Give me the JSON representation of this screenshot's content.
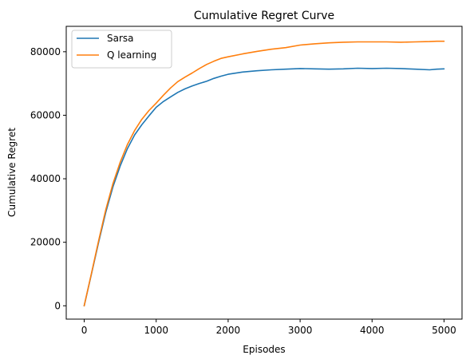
{
  "chart_data": {
    "type": "line",
    "title": "Cumulative Regret Curve",
    "xlabel": "Episodes",
    "ylabel": "Cumulative Regret",
    "xlim": [
      -250,
      5250
    ],
    "ylim": [
      -4200,
      88000
    ],
    "xticks": [
      0,
      1000,
      2000,
      3000,
      4000,
      5000
    ],
    "xtick_labels": [
      "0",
      "1000",
      "2000",
      "3000",
      "4000",
      "5000"
    ],
    "yticks": [
      0,
      20000,
      40000,
      60000,
      80000
    ],
    "ytick_labels": [
      "0",
      "20000",
      "40000",
      "60000",
      "80000"
    ],
    "grid": false,
    "legend_position": "top-left",
    "series": [
      {
        "name": "Sarsa",
        "color": "#1f77b4",
        "x": [
          0,
          100,
          200,
          300,
          400,
          500,
          600,
          700,
          800,
          900,
          1000,
          1100,
          1200,
          1300,
          1400,
          1500,
          1600,
          1700,
          1800,
          1900,
          2000,
          2200,
          2400,
          2600,
          2800,
          3000,
          3200,
          3400,
          3600,
          3800,
          4000,
          4200,
          4400,
          4600,
          4800,
          4900,
          5000
        ],
        "values": [
          0,
          10000,
          20000,
          29500,
          37500,
          44000,
          49500,
          53800,
          57000,
          59800,
          62500,
          64300,
          65800,
          67200,
          68300,
          69200,
          70000,
          70700,
          71600,
          72300,
          72900,
          73600,
          74000,
          74300,
          74500,
          74700,
          74600,
          74500,
          74600,
          74800,
          74700,
          74800,
          74700,
          74500,
          74300,
          74500,
          74600
        ]
      },
      {
        "name": "Q learning",
        "color": "#ff7f0e",
        "x": [
          0,
          100,
          200,
          300,
          400,
          500,
          600,
          700,
          800,
          900,
          1000,
          1100,
          1200,
          1300,
          1400,
          1500,
          1600,
          1700,
          1800,
          1900,
          2000,
          2200,
          2400,
          2600,
          2800,
          3000,
          3200,
          3400,
          3600,
          3800,
          4000,
          4200,
          4400,
          4600,
          4800,
          4900,
          5000
        ],
        "values": [
          0,
          10200,
          20500,
          30300,
          38500,
          45200,
          50800,
          55200,
          58700,
          61500,
          63800,
          66300,
          68600,
          70600,
          72000,
          73300,
          74700,
          76000,
          77000,
          77900,
          78400,
          79300,
          80100,
          80800,
          81300,
          82100,
          82500,
          82800,
          83000,
          83100,
          83100,
          83100,
          83000,
          83100,
          83200,
          83300,
          83300
        ]
      }
    ]
  }
}
